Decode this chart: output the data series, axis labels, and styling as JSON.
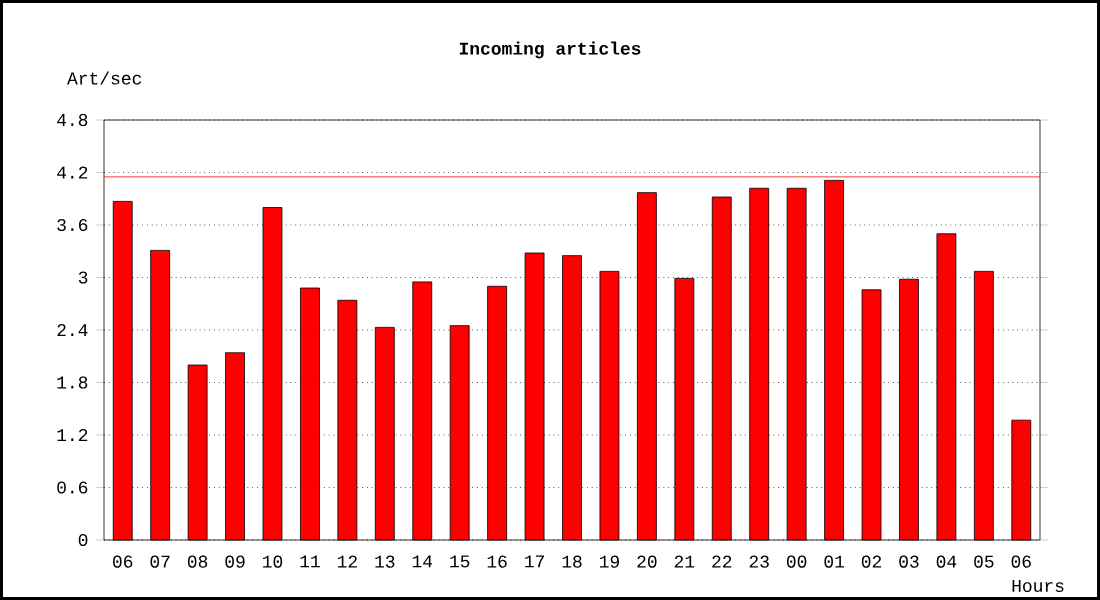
{
  "chart_data": {
    "type": "bar",
    "title": "Incoming articles",
    "xlabel": "Hours",
    "ylabel": "Art/sec",
    "categories": [
      "06",
      "07",
      "08",
      "09",
      "10",
      "11",
      "12",
      "13",
      "14",
      "15",
      "16",
      "17",
      "18",
      "19",
      "20",
      "21",
      "22",
      "23",
      "00",
      "01",
      "02",
      "03",
      "04",
      "05",
      "06"
    ],
    "values": [
      3.87,
      3.31,
      2.0,
      2.14,
      3.8,
      2.88,
      2.74,
      2.43,
      2.95,
      2.45,
      2.9,
      3.28,
      3.25,
      3.07,
      3.97,
      2.99,
      3.92,
      4.02,
      4.02,
      4.11,
      2.86,
      2.98,
      3.5,
      3.07,
      1.37
    ],
    "color": "#ff0000",
    "ylim": [
      0,
      4.8
    ],
    "yticks": [
      0,
      0.6,
      1.2,
      1.8,
      2.4,
      3,
      3.6,
      4.2,
      4.8
    ],
    "grid": "y",
    "ref_lines": [
      {
        "axis": "y",
        "value": 4.15,
        "color": "#ff0000"
      }
    ]
  }
}
